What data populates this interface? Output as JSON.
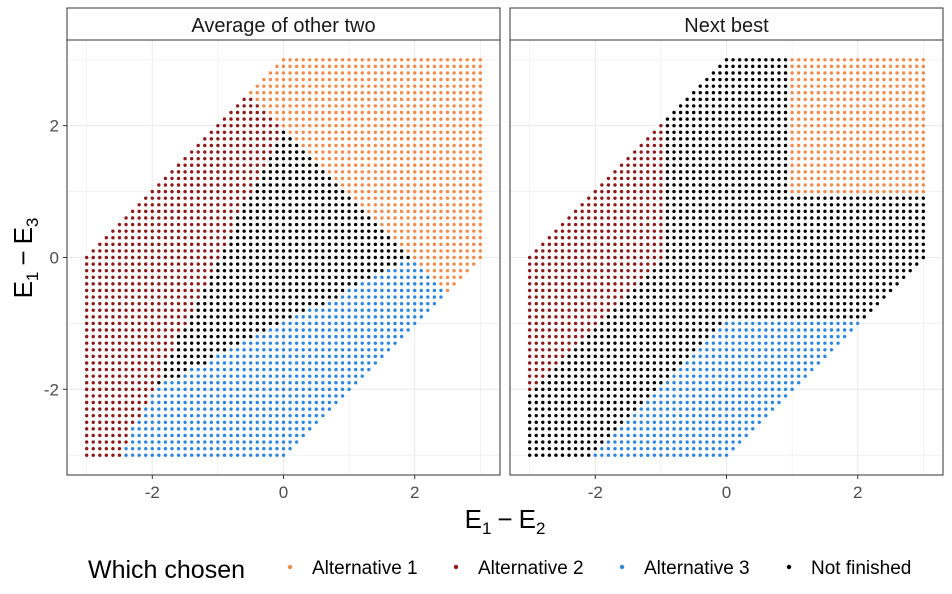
{
  "chart_data": {
    "type": "scatter",
    "facets": [
      {
        "title": "Average of other two",
        "rule": "average"
      },
      {
        "title": "Next best",
        "rule": "next_best"
      }
    ],
    "xlabel": {
      "base": "E",
      "sub1": "1",
      "minus": "−",
      "sub2": "2"
    },
    "ylabel": {
      "base": "E",
      "sub1": "1",
      "minus": "−",
      "sub2": "3"
    },
    "xlim": [
      -3.3,
      3.3
    ],
    "ylim": [
      -3.3,
      3.3
    ],
    "x_ticks": [
      -2,
      0,
      2
    ],
    "x_tick_labels": [
      "-2",
      "0",
      "2"
    ],
    "y_ticks": [
      -2,
      0,
      2
    ],
    "y_tick_labels": [
      "-2",
      "0",
      "2"
    ],
    "grid": true,
    "grid_step": 0.1,
    "domain": "x in [-3,3], y in [-3,3], |x - y| <= 3",
    "series": [
      {
        "name": "Alternative 1",
        "color": "#F28C4E"
      },
      {
        "name": "Alternative 2",
        "color": "#8B1A1A"
      },
      {
        "name": "Alternative 3",
        "color": "#2E86DE"
      },
      {
        "name": "Not finished",
        "color": "#000000"
      }
    ],
    "legend": {
      "title": "Which chosen",
      "position": "bottom"
    }
  }
}
